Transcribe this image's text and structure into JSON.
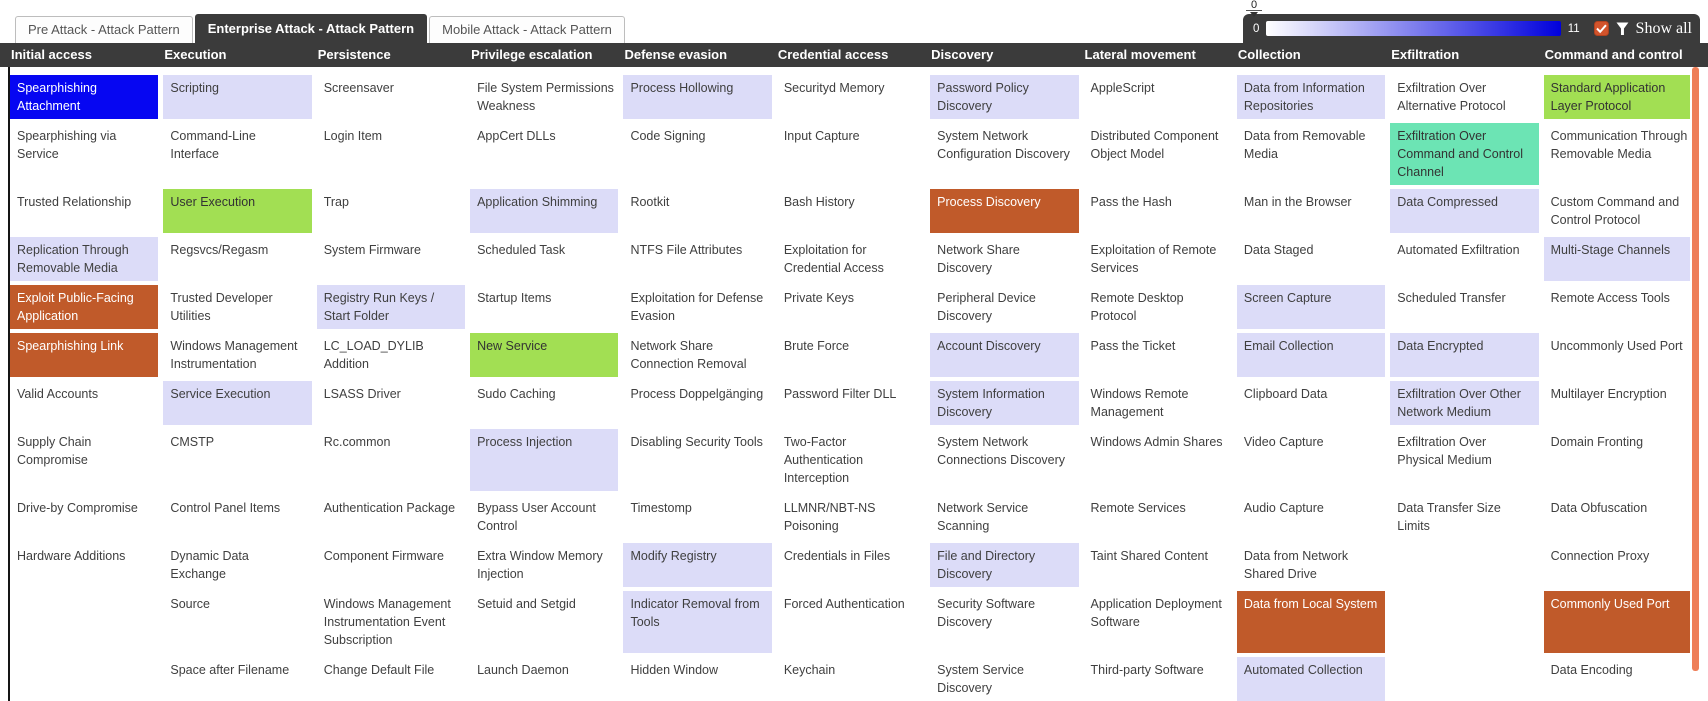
{
  "tabs": [
    {
      "label": "Pre Attack - Attack Pattern",
      "active": false
    },
    {
      "label": "Enterprise Attack - Attack Pattern",
      "active": true
    },
    {
      "label": "Mobile Attack - Attack Pattern",
      "active": false
    }
  ],
  "legend": {
    "handle_value": "0",
    "min_label": "0",
    "max_label": "11",
    "show_all_label": "Show all",
    "checkbox_checked": true
  },
  "colors": {
    "header_bg": "#3b3b3b",
    "gradient_end": "#0000dc",
    "cell_blue": "#0606f2",
    "cell_lavender": "#dcdcf8",
    "cell_green": "#a2df53",
    "cell_orange": "#c05a2a",
    "cell_teal": "#6ce4b4",
    "scroll_thumb": "#ee7e58",
    "checkbox_fill": "#d2542c"
  },
  "tactics": [
    {
      "name": "Initial access",
      "techniques": [
        {
          "t": "Spearphishing Attachment",
          "c": "blue"
        },
        {
          "t": "Spearphishing via Service"
        },
        {
          "t": "Trusted Relationship"
        },
        {
          "t": "Replication Through Removable Media",
          "c": "lavender"
        },
        {
          "t": "Exploit Public-Facing Application",
          "c": "orange"
        },
        {
          "t": "Spearphishing Link",
          "c": "orange"
        },
        {
          "t": "Valid Accounts"
        },
        {
          "t": "Supply Chain Compromise"
        },
        {
          "t": "Drive-by Compromise"
        },
        {
          "t": "Hardware Additions"
        }
      ]
    },
    {
      "name": "Execution",
      "techniques": [
        {
          "t": "Scripting",
          "c": "lavender"
        },
        {
          "t": "Command-Line Interface"
        },
        {
          "t": "User Execution",
          "c": "green"
        },
        {
          "t": "Regsvcs/Regasm"
        },
        {
          "t": "Trusted Developer Utilities"
        },
        {
          "t": "Windows Management Instrumentation"
        },
        {
          "t": "Service Execution",
          "c": "lavender"
        },
        {
          "t": "CMSTP"
        },
        {
          "t": "Control Panel Items"
        },
        {
          "t": "Dynamic Data Exchange"
        },
        {
          "t": "Source"
        },
        {
          "t": "Space after Filename"
        }
      ]
    },
    {
      "name": "Persistence",
      "techniques": [
        {
          "t": "Screensaver"
        },
        {
          "t": "Login Item"
        },
        {
          "t": "Trap"
        },
        {
          "t": "System Firmware"
        },
        {
          "t": "Registry Run Keys / Start Folder",
          "c": "lavender"
        },
        {
          "t": "LC_LOAD_DYLIB Addition"
        },
        {
          "t": "LSASS Driver"
        },
        {
          "t": "Rc.common"
        },
        {
          "t": "Authentication Package"
        },
        {
          "t": "Component Firmware"
        },
        {
          "t": "Windows Management Instrumentation Event Subscription"
        },
        {
          "t": "Change Default File"
        }
      ]
    },
    {
      "name": "Privilege escalation",
      "techniques": [
        {
          "t": "File System Permissions Weakness"
        },
        {
          "t": "AppCert DLLs"
        },
        {
          "t": "Application Shimming",
          "c": "lavender"
        },
        {
          "t": "Scheduled Task"
        },
        {
          "t": "Startup Items"
        },
        {
          "t": "New Service",
          "c": "green"
        },
        {
          "t": "Sudo Caching"
        },
        {
          "t": "Process Injection",
          "c": "lavender"
        },
        {
          "t": "Bypass User Account Control"
        },
        {
          "t": "Extra Window Memory Injection"
        },
        {
          "t": "Setuid and Setgid"
        },
        {
          "t": "Launch Daemon"
        }
      ]
    },
    {
      "name": "Defense evasion",
      "techniques": [
        {
          "t": "Process Hollowing",
          "c": "lavender"
        },
        {
          "t": "Code Signing"
        },
        {
          "t": "Rootkit"
        },
        {
          "t": "NTFS File Attributes"
        },
        {
          "t": "Exploitation for Defense Evasion"
        },
        {
          "t": "Network Share Connection Removal"
        },
        {
          "t": "Process Doppelgänging"
        },
        {
          "t": "Disabling Security Tools"
        },
        {
          "t": "Timestomp"
        },
        {
          "t": "Modify Registry",
          "c": "lavender"
        },
        {
          "t": "Indicator Removal from Tools",
          "c": "lavender"
        },
        {
          "t": "Hidden Window"
        }
      ]
    },
    {
      "name": "Credential access",
      "techniques": [
        {
          "t": "Securityd Memory"
        },
        {
          "t": "Input Capture"
        },
        {
          "t": "Bash History"
        },
        {
          "t": "Exploitation for Credential Access"
        },
        {
          "t": "Private Keys"
        },
        {
          "t": "Brute Force"
        },
        {
          "t": "Password Filter DLL"
        },
        {
          "t": "Two-Factor Authentication Interception"
        },
        {
          "t": "LLMNR/NBT-NS Poisoning"
        },
        {
          "t": "Credentials in Files"
        },
        {
          "t": "Forced Authentication"
        },
        {
          "t": "Keychain"
        }
      ]
    },
    {
      "name": "Discovery",
      "techniques": [
        {
          "t": "Password Policy Discovery",
          "c": "lavender"
        },
        {
          "t": "System Network Configuration Discovery"
        },
        {
          "t": "Process Discovery",
          "c": "orange"
        },
        {
          "t": "Network Share Discovery"
        },
        {
          "t": "Peripheral Device Discovery"
        },
        {
          "t": "Account Discovery",
          "c": "lavender"
        },
        {
          "t": "System Information Discovery",
          "c": "lavender"
        },
        {
          "t": "System Network Connections Discovery"
        },
        {
          "t": "Network Service Scanning"
        },
        {
          "t": "File and Directory Discovery",
          "c": "lavender"
        },
        {
          "t": "Security Software Discovery"
        },
        {
          "t": "System Service Discovery"
        }
      ]
    },
    {
      "name": "Lateral movement",
      "techniques": [
        {
          "t": "AppleScript"
        },
        {
          "t": "Distributed Component Object Model"
        },
        {
          "t": "Pass the Hash"
        },
        {
          "t": "Exploitation of Remote Services"
        },
        {
          "t": "Remote Desktop Protocol"
        },
        {
          "t": "Pass the Ticket"
        },
        {
          "t": "Windows Remote Management"
        },
        {
          "t": "Windows Admin Shares"
        },
        {
          "t": "Remote Services"
        },
        {
          "t": "Taint Shared Content"
        },
        {
          "t": "Application Deployment Software"
        },
        {
          "t": "Third-party Software"
        }
      ]
    },
    {
      "name": "Collection",
      "techniques": [
        {
          "t": "Data from Information Repositories",
          "c": "lavender"
        },
        {
          "t": "Data from Removable Media"
        },
        {
          "t": "Man in the Browser"
        },
        {
          "t": "Data Staged"
        },
        {
          "t": "Screen Capture",
          "c": "lavender"
        },
        {
          "t": "Email Collection",
          "c": "lavender"
        },
        {
          "t": "Clipboard Data"
        },
        {
          "t": "Video Capture"
        },
        {
          "t": "Audio Capture"
        },
        {
          "t": "Data from Network Shared Drive"
        },
        {
          "t": "Data from Local System",
          "c": "orange"
        },
        {
          "t": "Automated Collection",
          "c": "lavender"
        }
      ]
    },
    {
      "name": "Exfiltration",
      "techniques": [
        {
          "t": "Exfiltration Over Alternative Protocol"
        },
        {
          "t": "Exfiltration Over Command and Control Channel",
          "c": "teal"
        },
        {
          "t": "Data Compressed",
          "c": "lavender"
        },
        {
          "t": "Automated Exfiltration"
        },
        {
          "t": "Scheduled Transfer"
        },
        {
          "t": "Data Encrypted",
          "c": "lavender"
        },
        {
          "t": "Exfiltration Over Other Network Medium",
          "c": "lavender"
        },
        {
          "t": "Exfiltration Over Physical Medium"
        },
        {
          "t": "Data Transfer Size Limits"
        }
      ]
    },
    {
      "name": "Command and control",
      "techniques": [
        {
          "t": "Standard Application Layer Protocol",
          "c": "green"
        },
        {
          "t": "Communication Through Removable Media"
        },
        {
          "t": "Custom Command and Control Protocol"
        },
        {
          "t": "Multi-Stage Channels",
          "c": "lavender"
        },
        {
          "t": "Remote Access Tools"
        },
        {
          "t": "Uncommonly Used Port"
        },
        {
          "t": "Multilayer Encryption"
        },
        {
          "t": "Domain Fronting"
        },
        {
          "t": "Data Obfuscation"
        },
        {
          "t": "Connection Proxy"
        },
        {
          "t": "Commonly Used Port",
          "c": "orange"
        },
        {
          "t": "Data Encoding"
        }
      ]
    }
  ]
}
